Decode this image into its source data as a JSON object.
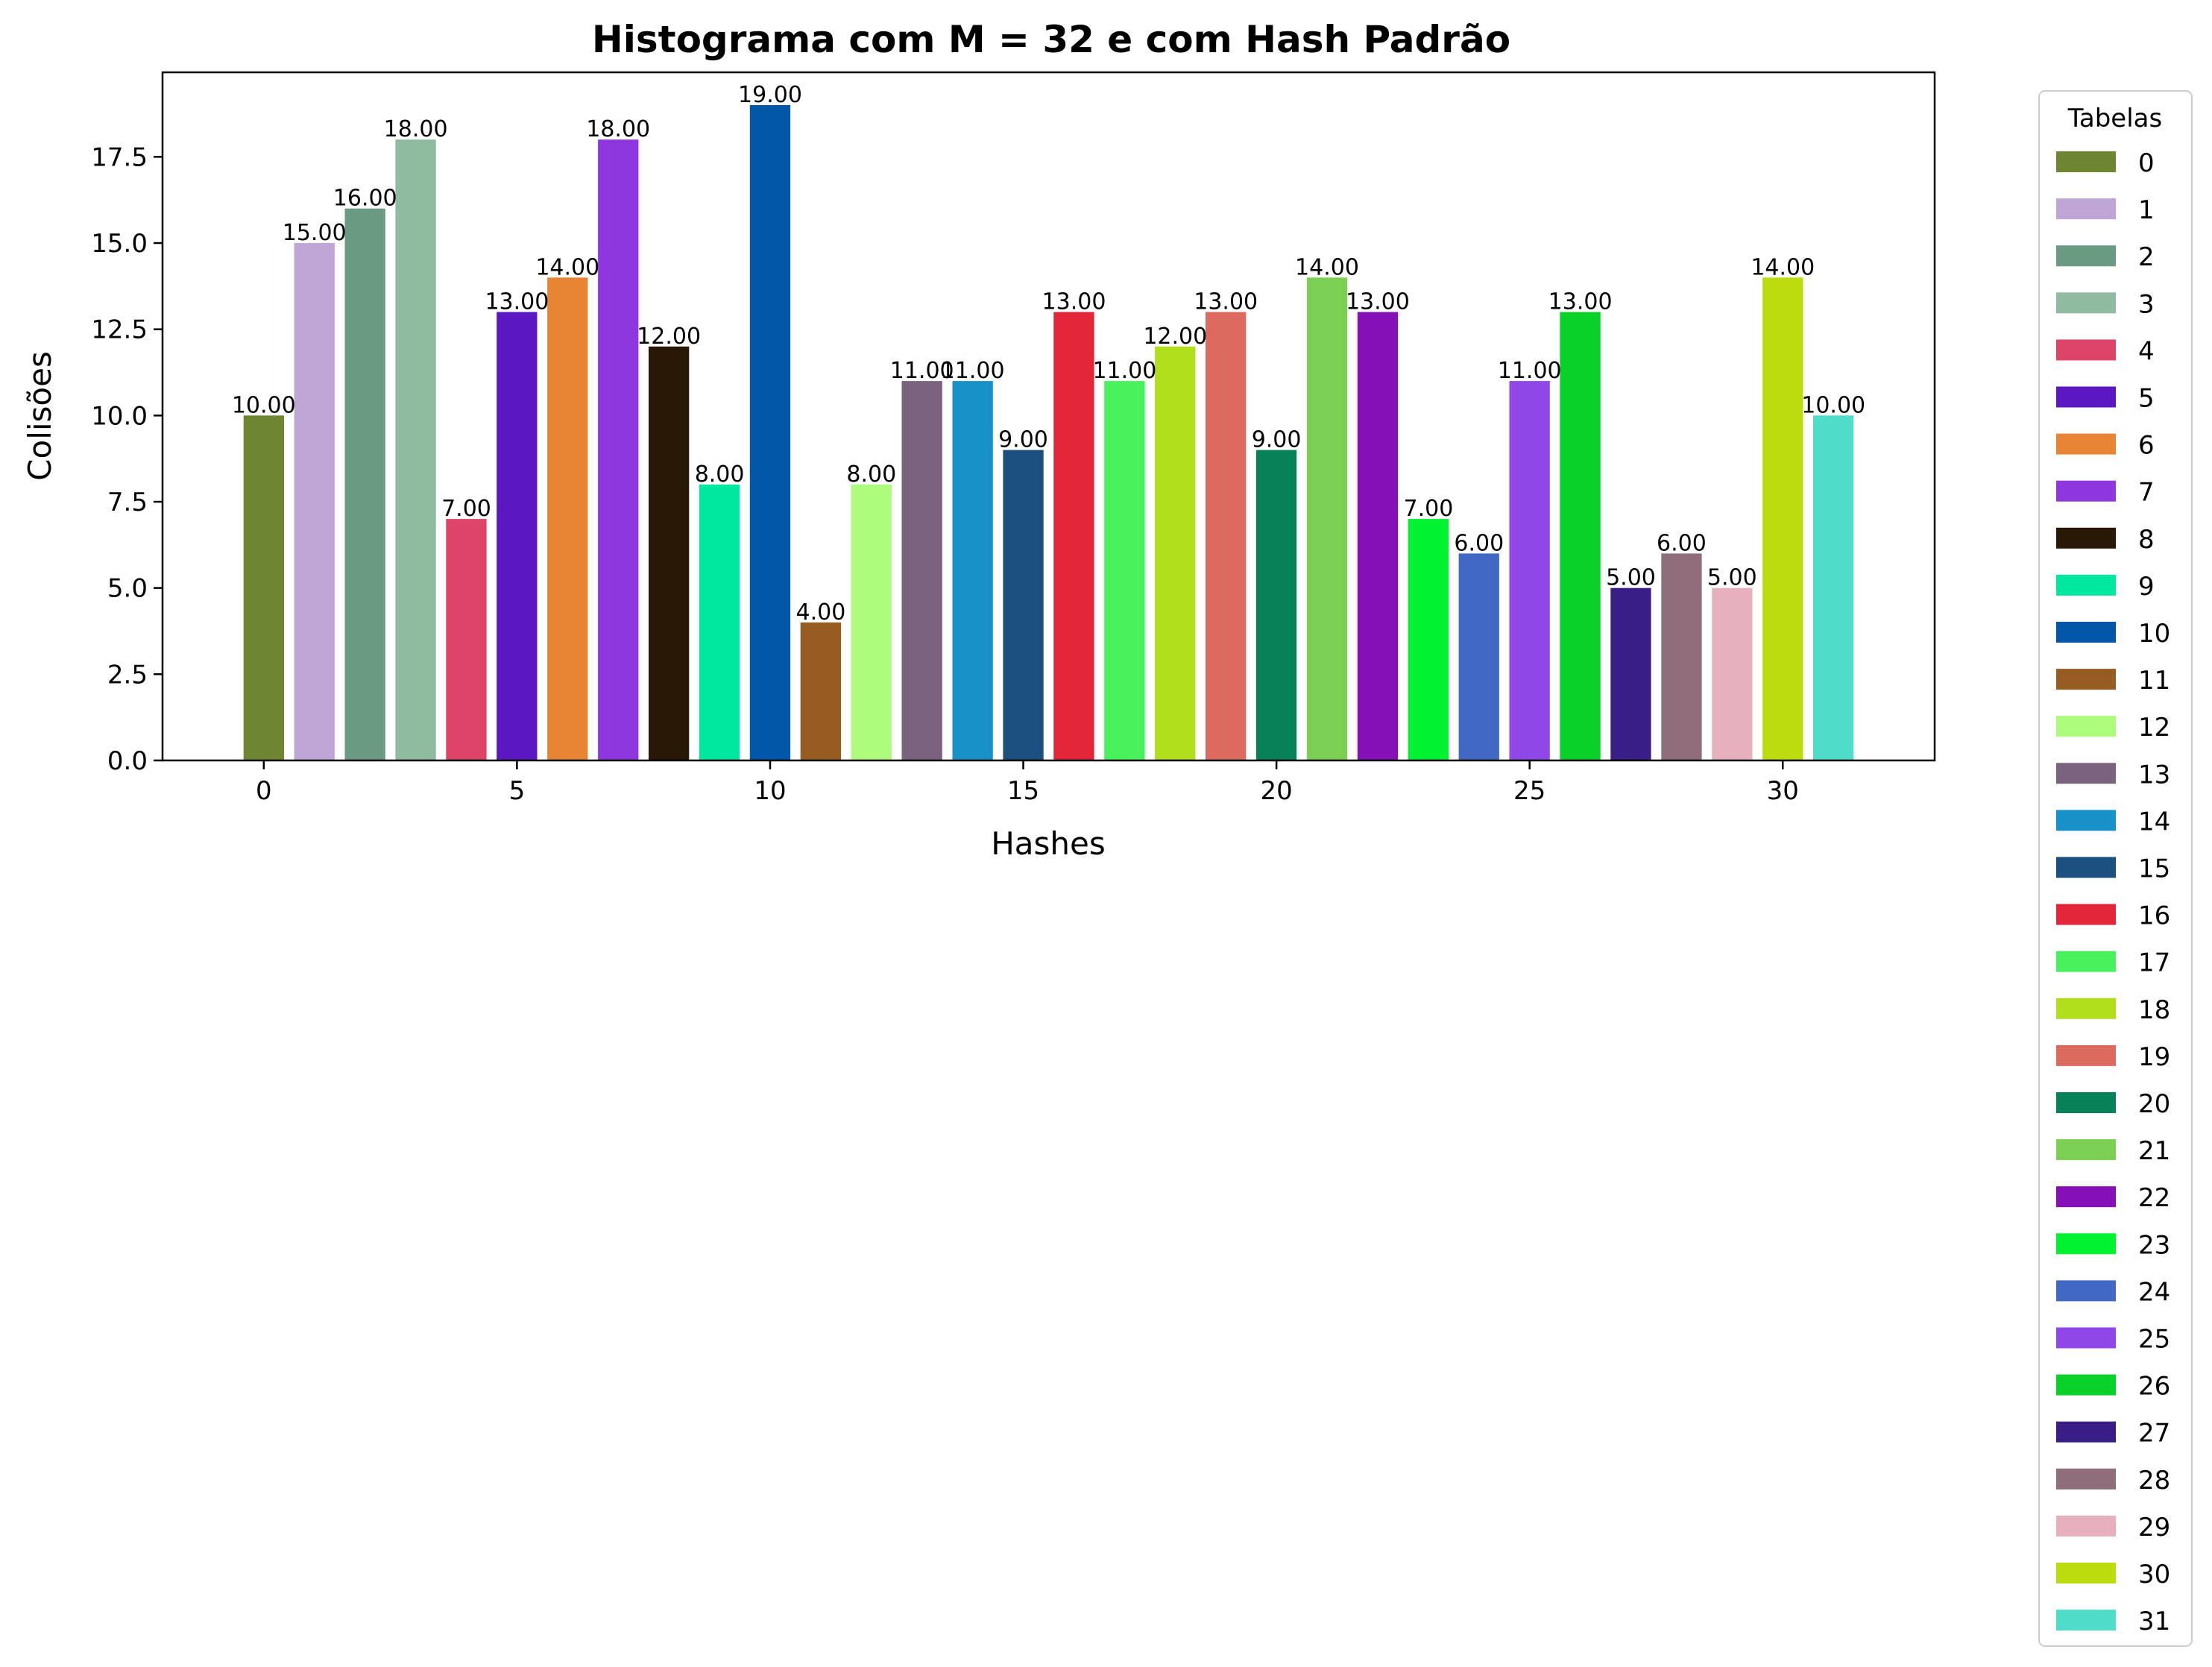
{
  "chart_data": {
    "type": "bar",
    "title": "Histograma com M = 32 e com Hash Padrão",
    "xlabel": "Hashes",
    "ylabel": "Colisões",
    "ylim": [
      0,
      19.95
    ],
    "xlim": [
      -2,
      33
    ],
    "xticks": [
      "0",
      "5",
      "10",
      "15",
      "20",
      "25",
      "30"
    ],
    "xtick_values": [
      0,
      5,
      10,
      15,
      20,
      25,
      30
    ],
    "yticks": [
      "0.0",
      "2.5",
      "5.0",
      "7.5",
      "10.0",
      "12.5",
      "15.0",
      "17.5"
    ],
    "ytick_values": [
      0,
      2.5,
      5,
      7.5,
      10,
      12.5,
      15,
      17.5
    ],
    "grid": false,
    "legend_title": "Tabelas",
    "legend_position": "outside-right",
    "categories": [
      0,
      1,
      2,
      3,
      4,
      5,
      6,
      7,
      8,
      9,
      10,
      11,
      12,
      13,
      14,
      15,
      16,
      17,
      18,
      19,
      20,
      21,
      22,
      23,
      24,
      25,
      26,
      27,
      28,
      29,
      30,
      31
    ],
    "values": [
      10,
      15,
      16,
      18,
      7,
      13,
      14,
      18,
      12,
      8,
      19,
      4,
      8,
      11,
      11,
      9,
      13,
      11,
      12,
      13,
      9,
      14,
      13,
      7,
      6,
      11,
      13,
      5,
      6,
      5,
      14,
      10
    ],
    "data_labels": [
      "10.00",
      "15.00",
      "16.00",
      "18.00",
      "7.00",
      "13.00",
      "14.00",
      "18.00",
      "12.00",
      "8.00",
      "19.00",
      "4.00",
      "8.00",
      "11.00",
      "11.00",
      "9.00",
      "13.00",
      "11.00",
      "12.00",
      "13.00",
      "9.00",
      "14.00",
      "13.00",
      "7.00",
      "6.00",
      "11.00",
      "13.00",
      "5.00",
      "6.00",
      "5.00",
      "14.00",
      "10.00"
    ],
    "legend_labels": [
      "0",
      "1",
      "2",
      "3",
      "4",
      "5",
      "6",
      "7",
      "8",
      "9",
      "10",
      "11",
      "12",
      "13",
      "14",
      "15",
      "16",
      "17",
      "18",
      "19",
      "20",
      "21",
      "22",
      "23",
      "24",
      "25",
      "26",
      "27",
      "28",
      "29",
      "30",
      "31"
    ],
    "colors": [
      "#6e8632",
      "#bfa6d6",
      "#6a9a82",
      "#8fbba0",
      "#dd4468",
      "#5a17c2",
      "#e88535",
      "#8f37de",
      "#2a1806",
      "#00e8a0",
      "#0257a8",
      "#975c22",
      "#adfc7b",
      "#7b6380",
      "#1891c9",
      "#1b4f7f",
      "#e22538",
      "#48f25c",
      "#b0de1a",
      "#dc6a5e",
      "#068158",
      "#7bd054",
      "#8510b7",
      "#01f231",
      "#4168c2",
      "#9047e7",
      "#0ad02a",
      "#381e85",
      "#8f6d7b",
      "#e6b1bc",
      "#bcdc10",
      "#4fdcc9"
    ]
  }
}
